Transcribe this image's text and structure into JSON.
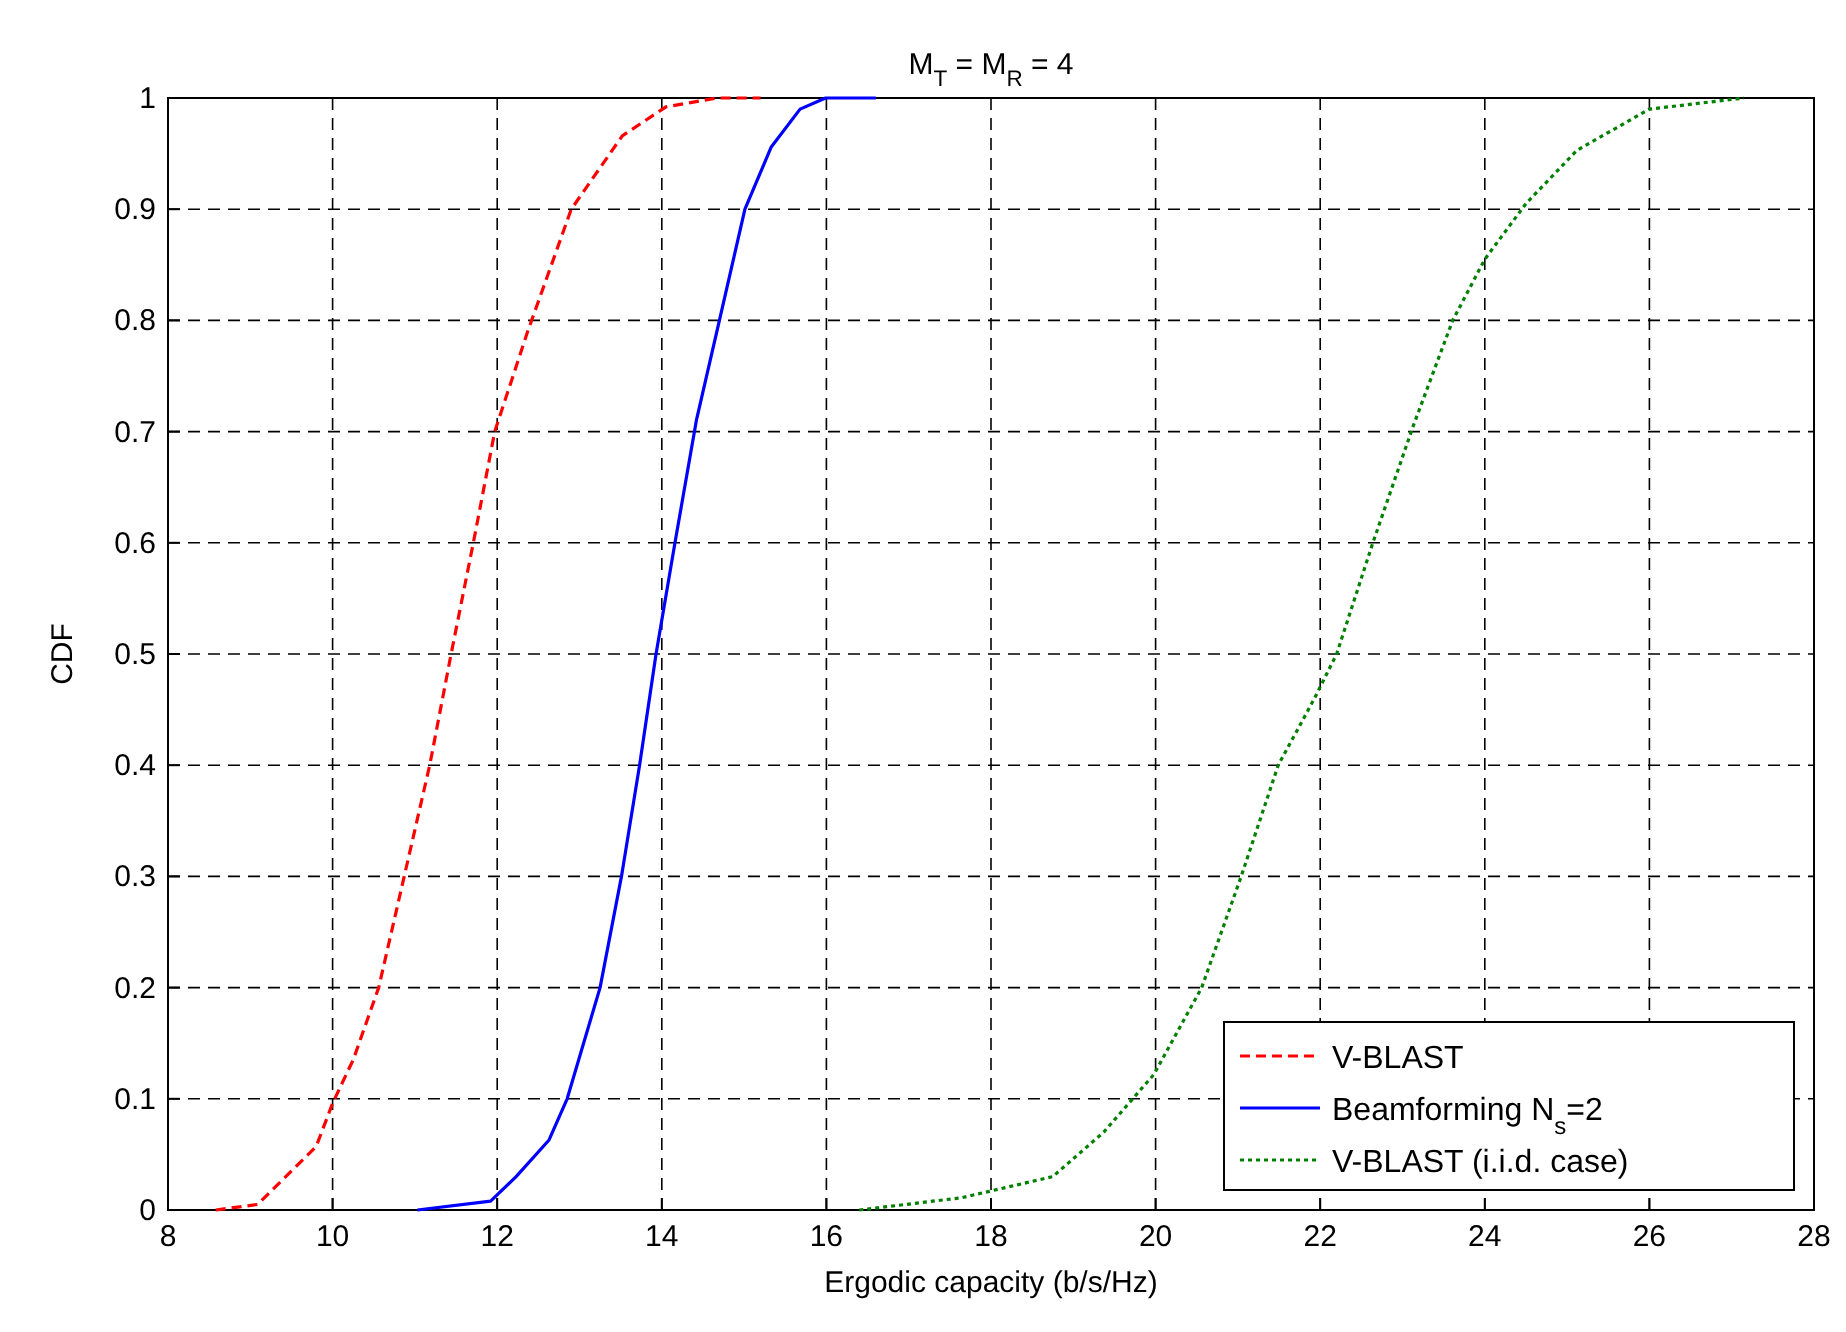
{
  "chart_data": {
    "type": "line",
    "title": "M$_{T}$ = M$_{R}$ = 4",
    "xlabel": "Ergodic capacity (b/s/Hz)",
    "ylabel": "CDF",
    "xlim": [
      8,
      28
    ],
    "xticks": [
      8,
      10,
      12,
      14,
      16,
      18,
      20,
      22,
      24,
      26,
      28
    ],
    "ylim": [
      0,
      1
    ],
    "yticks": [
      0,
      0.1,
      0.2,
      0.3,
      0.4,
      0.5,
      0.6,
      0.7,
      0.8,
      0.9,
      1
    ],
    "grid": true,
    "legend": "bottom right",
    "series": [
      {
        "name": "V-BLAST",
        "color": "#ff0000",
        "line_style": "dashed",
        "x": [
          8.58,
          9.09,
          9.8,
          10.0,
          10.25,
          10.56,
          10.87,
          11.18,
          11.44,
          11.71,
          11.97,
          12.37,
          12.9,
          13.52,
          14.05,
          14.67,
          15.2
        ],
        "values": [
          0,
          0.005,
          0.057,
          0.096,
          0.135,
          0.2,
          0.3,
          0.4,
          0.5,
          0.6,
          0.7,
          0.79,
          0.9,
          0.966,
          0.992,
          1,
          1
        ]
      },
      {
        "name": "Beamforming N$_{s}$=2",
        "color": "#0000ff",
        "line_style": "solid",
        "x": [
          11.03,
          11.92,
          12.23,
          12.63,
          12.85,
          13.25,
          13.51,
          13.73,
          13.93,
          14.16,
          14.42,
          14.7,
          15.01,
          15.33,
          15.68,
          15.99,
          16.6
        ],
        "values": [
          0,
          0.008,
          0.03,
          0.063,
          0.1,
          0.2,
          0.3,
          0.4,
          0.5,
          0.6,
          0.71,
          0.8,
          0.9,
          0.956,
          0.99,
          1,
          1
        ]
      },
      {
        "name": "V-BLAST (i.i.d. case)",
        "color": "#008000",
        "line_style": "dotted",
        "x": [
          16.4,
          17.64,
          18.75,
          19.37,
          19.98,
          20.56,
          21.04,
          21.49,
          21.93,
          22.2,
          22.64,
          23.13,
          23.61,
          24.0,
          24.5,
          25.12,
          26.0,
          27.15
        ],
        "values": [
          0,
          0.011,
          0.03,
          0.07,
          0.122,
          0.2,
          0.3,
          0.4,
          0.46,
          0.5,
          0.6,
          0.705,
          0.8,
          0.855,
          0.905,
          0.953,
          0.99,
          1
        ]
      }
    ]
  }
}
